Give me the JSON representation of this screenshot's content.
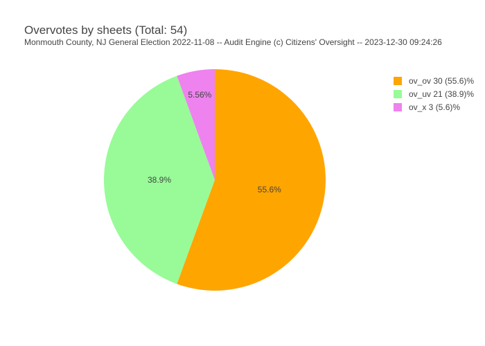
{
  "chart_data": {
    "type": "pie",
    "title": "Overvotes by sheets (Total: 54)",
    "subtitle": "Monmouth County, NJ General Election 2022-11-08 -- Audit Engine (c) Citizens' Oversight -- 2023-12-30 09:24:26",
    "total": 54,
    "legend_position": "top-right",
    "slices": [
      {
        "name": "ov_ov",
        "value": 30,
        "color": "#FFA500",
        "slice_label": "55.6%",
        "legend_label": "ov_ov 30 (55.6)%"
      },
      {
        "name": "ov_uv",
        "value": 21,
        "color": "#98FB98",
        "slice_label": "38.9%",
        "legend_label": "ov_uv 21 (38.9)%"
      },
      {
        "name": "ov_x",
        "value": 3,
        "color": "#EE82EE",
        "slice_label": "5.56%",
        "legend_label": "ov_x 3 (5.6)%"
      }
    ]
  }
}
